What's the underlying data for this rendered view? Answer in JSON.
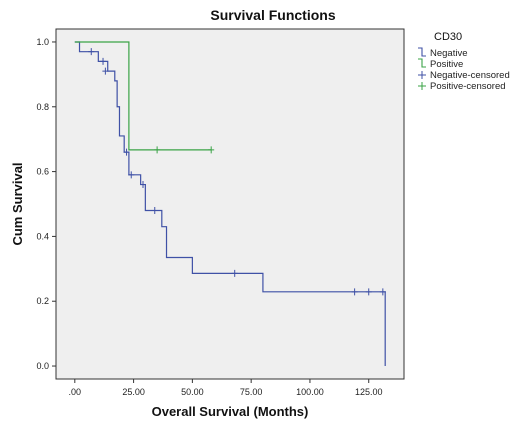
{
  "chart_data": {
    "type": "line",
    "title": "Survival Functions",
    "xlabel": "Overall Survival (Months)",
    "ylabel": "Cum Survival",
    "xlim": [
      -8,
      140
    ],
    "ylim": [
      -0.04,
      1.04
    ],
    "xticks": [
      0,
      25,
      50,
      75,
      100,
      125
    ],
    "xtick_labels": [
      ".00",
      "25.00",
      "50.00",
      "75.00",
      "100.00",
      "125.00"
    ],
    "yticks": [
      0,
      0.2,
      0.4,
      0.6,
      0.8,
      1.0
    ],
    "ytick_labels": [
      "0.0",
      "0.2",
      "0.4",
      "0.6",
      "0.8",
      "1.0"
    ],
    "grid": false,
    "legend_title": "CD30",
    "legend_position": "right",
    "colors": {
      "negative": "#3f51a6",
      "positive": "#3aa346",
      "plot_bg": "#efefef"
    },
    "series": [
      {
        "name": "Negative",
        "color": "#3f51a6",
        "steps": [
          [
            0,
            1.0
          ],
          [
            2,
            0.97
          ],
          [
            10,
            0.94
          ],
          [
            14,
            0.91
          ],
          [
            17,
            0.88
          ],
          [
            18,
            0.8
          ],
          [
            19,
            0.71
          ],
          [
            21,
            0.66
          ],
          [
            23,
            0.59
          ],
          [
            28,
            0.56
          ],
          [
            30,
            0.48
          ],
          [
            35,
            0.48
          ],
          [
            37,
            0.43
          ],
          [
            39,
            0.335
          ],
          [
            50,
            0.286
          ],
          [
            80,
            0.229
          ],
          [
            132,
            0.0
          ]
        ],
        "end_x": 132
      },
      {
        "name": "Positive",
        "color": "#3aa346",
        "steps": [
          [
            0,
            1.0
          ],
          [
            23,
            0.667
          ]
        ],
        "end_x": 58
      }
    ],
    "censored": [
      {
        "name": "Negative-censored",
        "color": "#3f51a6",
        "points": [
          [
            7,
            0.97
          ],
          [
            12,
            0.94
          ],
          [
            13,
            0.91
          ],
          [
            22,
            0.66
          ],
          [
            24,
            0.59
          ],
          [
            29,
            0.56
          ],
          [
            34,
            0.48
          ],
          [
            68,
            0.286
          ],
          [
            119,
            0.229
          ],
          [
            125,
            0.229
          ],
          [
            131,
            0.229
          ]
        ]
      },
      {
        "name": "Positive-censored",
        "color": "#3aa346",
        "points": [
          [
            35,
            0.667
          ],
          [
            58,
            0.667
          ]
        ]
      }
    ]
  }
}
